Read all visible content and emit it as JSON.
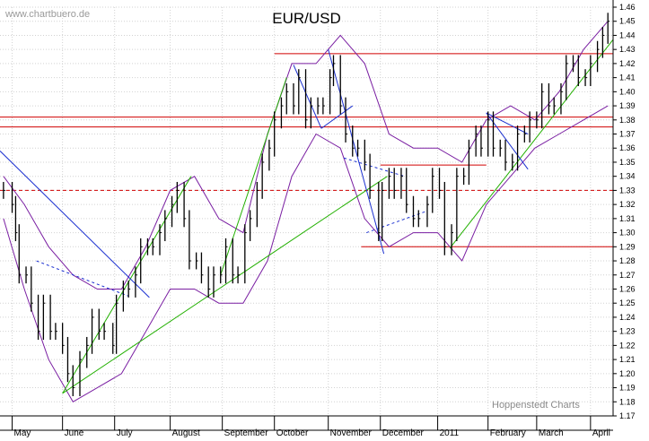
{
  "watermark": "www.chartbuero.de",
  "credit": "Hoppenstedt Charts",
  "chart_data": {
    "type": "line",
    "title": "EUR/USD",
    "xlabel": "",
    "ylabel": "",
    "x_tick_labels": [
      "May",
      "June",
      "July",
      "August",
      "September",
      "October",
      "November",
      "December",
      "2011",
      "February",
      "March",
      "April"
    ],
    "x_tick_dates": [
      "2010-05-03",
      "2010-06-01",
      "2010-07-01",
      "2010-08-02",
      "2010-09-01",
      "2010-10-01",
      "2010-11-01",
      "2010-12-01",
      "2011-01-03",
      "2011-02-01",
      "2011-03-01",
      "2011-04-01"
    ],
    "y_tick_labels": [
      "1.17",
      "1.18",
      "1.19",
      "1.20",
      "1.21",
      "1.22",
      "1.23",
      "1.24",
      "1.25",
      "1.26",
      "1.27",
      "1.28",
      "1.29",
      "1.30",
      "1.31",
      "1.32",
      "1.33",
      "1.34",
      "1.35",
      "1.36",
      "1.37",
      "1.38",
      "1.39",
      "1.40",
      "1.41",
      "1.42",
      "1.43",
      "1.44",
      "1.45",
      "1.46"
    ],
    "ylim": [
      1.17,
      1.46
    ],
    "xlim": [
      "2010-04-26",
      "2011-04-14"
    ],
    "grid": true,
    "series": [
      {
        "style": "high-low bars",
        "color": "#000000",
        "values": [
          {
            "x": "2010-04-28",
            "y": 1.33
          },
          {
            "x": "2010-05-03",
            "y": 1.32
          },
          {
            "x": "2010-05-05",
            "y": 1.3
          },
          {
            "x": "2010-05-07",
            "y": 1.27
          },
          {
            "x": "2010-05-11",
            "y": 1.27
          },
          {
            "x": "2010-05-14",
            "y": 1.25
          },
          {
            "x": "2010-05-18",
            "y": 1.23
          },
          {
            "x": "2010-05-21",
            "y": 1.25
          },
          {
            "x": "2010-05-25",
            "y": 1.23
          },
          {
            "x": "2010-05-28",
            "y": 1.23
          },
          {
            "x": "2010-06-01",
            "y": 1.22
          },
          {
            "x": "2010-06-04",
            "y": 1.2
          },
          {
            "x": "2010-06-07",
            "y": 1.19
          },
          {
            "x": "2010-06-11",
            "y": 1.21
          },
          {
            "x": "2010-06-15",
            "y": 1.22
          },
          {
            "x": "2010-06-18",
            "y": 1.24
          },
          {
            "x": "2010-06-22",
            "y": 1.23
          },
          {
            "x": "2010-06-25",
            "y": 1.23
          },
          {
            "x": "2010-06-30",
            "y": 1.22
          },
          {
            "x": "2010-07-02",
            "y": 1.25
          },
          {
            "x": "2010-07-06",
            "y": 1.26
          },
          {
            "x": "2010-07-09",
            "y": 1.26
          },
          {
            "x": "2010-07-13",
            "y": 1.27
          },
          {
            "x": "2010-07-16",
            "y": 1.29
          },
          {
            "x": "2010-07-20",
            "y": 1.29
          },
          {
            "x": "2010-07-23",
            "y": 1.29
          },
          {
            "x": "2010-07-27",
            "y": 1.3
          },
          {
            "x": "2010-07-30",
            "y": 1.31
          },
          {
            "x": "2010-08-03",
            "y": 1.32
          },
          {
            "x": "2010-08-06",
            "y": 1.33
          },
          {
            "x": "2010-08-10",
            "y": 1.31
          },
          {
            "x": "2010-08-13",
            "y": 1.28
          },
          {
            "x": "2010-08-17",
            "y": 1.28
          },
          {
            "x": "2010-08-20",
            "y": 1.27
          },
          {
            "x": "2010-08-24",
            "y": 1.26
          },
          {
            "x": "2010-08-27",
            "y": 1.27
          },
          {
            "x": "2010-08-31",
            "y": 1.27
          },
          {
            "x": "2010-09-03",
            "y": 1.29
          },
          {
            "x": "2010-09-07",
            "y": 1.27
          },
          {
            "x": "2010-09-10",
            "y": 1.27
          },
          {
            "x": "2010-09-14",
            "y": 1.3
          },
          {
            "x": "2010-09-17",
            "y": 1.31
          },
          {
            "x": "2010-09-21",
            "y": 1.33
          },
          {
            "x": "2010-09-24",
            "y": 1.35
          },
          {
            "x": "2010-09-28",
            "y": 1.36
          },
          {
            "x": "2010-10-01",
            "y": 1.38
          },
          {
            "x": "2010-10-05",
            "y": 1.39
          },
          {
            "x": "2010-10-08",
            "y": 1.4
          },
          {
            "x": "2010-10-12",
            "y": 1.39
          },
          {
            "x": "2010-10-15",
            "y": 1.41
          },
          {
            "x": "2010-10-19",
            "y": 1.38
          },
          {
            "x": "2010-10-22",
            "y": 1.39
          },
          {
            "x": "2010-10-26",
            "y": 1.39
          },
          {
            "x": "2010-10-29",
            "y": 1.39
          },
          {
            "x": "2010-11-02",
            "y": 1.41
          },
          {
            "x": "2010-11-04",
            "y": 1.42
          },
          {
            "x": "2010-11-08",
            "y": 1.39
          },
          {
            "x": "2010-11-11",
            "y": 1.37
          },
          {
            "x": "2010-11-15",
            "y": 1.36
          },
          {
            "x": "2010-11-18",
            "y": 1.36
          },
          {
            "x": "2010-11-22",
            "y": 1.35
          },
          {
            "x": "2010-11-25",
            "y": 1.33
          },
          {
            "x": "2010-11-30",
            "y": 1.3
          },
          {
            "x": "2010-12-02",
            "y": 1.33
          },
          {
            "x": "2010-12-06",
            "y": 1.34
          },
          {
            "x": "2010-12-09",
            "y": 1.33
          },
          {
            "x": "2010-12-13",
            "y": 1.34
          },
          {
            "x": "2010-12-16",
            "y": 1.32
          },
          {
            "x": "2010-12-20",
            "y": 1.31
          },
          {
            "x": "2010-12-23",
            "y": 1.31
          },
          {
            "x": "2010-12-28",
            "y": 1.32
          },
          {
            "x": "2010-12-31",
            "y": 1.34
          },
          {
            "x": "2011-01-04",
            "y": 1.33
          },
          {
            "x": "2011-01-07",
            "y": 1.29
          },
          {
            "x": "2011-01-11",
            "y": 1.3
          },
          {
            "x": "2011-01-14",
            "y": 1.34
          },
          {
            "x": "2011-01-18",
            "y": 1.34
          },
          {
            "x": "2011-01-21",
            "y": 1.36
          },
          {
            "x": "2011-01-25",
            "y": 1.37
          },
          {
            "x": "2011-01-28",
            "y": 1.36
          },
          {
            "x": "2011-02-01",
            "y": 1.38
          },
          {
            "x": "2011-02-04",
            "y": 1.36
          },
          {
            "x": "2011-02-08",
            "y": 1.36
          },
          {
            "x": "2011-02-11",
            "y": 1.35
          },
          {
            "x": "2011-02-15",
            "y": 1.35
          },
          {
            "x": "2011-02-18",
            "y": 1.37
          },
          {
            "x": "2011-02-22",
            "y": 1.37
          },
          {
            "x": "2011-02-25",
            "y": 1.38
          },
          {
            "x": "2011-03-01",
            "y": 1.38
          },
          {
            "x": "2011-03-04",
            "y": 1.4
          },
          {
            "x": "2011-03-08",
            "y": 1.39
          },
          {
            "x": "2011-03-11",
            "y": 1.39
          },
          {
            "x": "2011-03-15",
            "y": 1.4
          },
          {
            "x": "2011-03-18",
            "y": 1.42
          },
          {
            "x": "2011-03-22",
            "y": 1.42
          },
          {
            "x": "2011-03-25",
            "y": 1.41
          },
          {
            "x": "2011-03-29",
            "y": 1.41
          },
          {
            "x": "2011-04-01",
            "y": 1.42
          },
          {
            "x": "2011-04-05",
            "y": 1.43
          },
          {
            "x": "2011-04-08",
            "y": 1.44
          },
          {
            "x": "2011-04-11",
            "y": 1.45
          }
        ]
      },
      {
        "style": "upper band",
        "color": "#7a1fa2",
        "values": [
          {
            "x": "2010-04-28",
            "y": 1.34
          },
          {
            "x": "2010-05-10",
            "y": 1.32
          },
          {
            "x": "2010-05-24",
            "y": 1.29
          },
          {
            "x": "2010-06-07",
            "y": 1.27
          },
          {
            "x": "2010-06-21",
            "y": 1.26
          },
          {
            "x": "2010-07-05",
            "y": 1.26
          },
          {
            "x": "2010-07-19",
            "y": 1.29
          },
          {
            "x": "2010-08-02",
            "y": 1.33
          },
          {
            "x": "2010-08-16",
            "y": 1.34
          },
          {
            "x": "2010-08-30",
            "y": 1.31
          },
          {
            "x": "2010-09-13",
            "y": 1.3
          },
          {
            "x": "2010-09-27",
            "y": 1.37
          },
          {
            "x": "2010-10-11",
            "y": 1.42
          },
          {
            "x": "2010-10-25",
            "y": 1.42
          },
          {
            "x": "2010-11-08",
            "y": 1.44
          },
          {
            "x": "2010-11-22",
            "y": 1.42
          },
          {
            "x": "2010-12-06",
            "y": 1.37
          },
          {
            "x": "2010-12-20",
            "y": 1.36
          },
          {
            "x": "2011-01-03",
            "y": 1.36
          },
          {
            "x": "2011-01-17",
            "y": 1.35
          },
          {
            "x": "2011-01-31",
            "y": 1.38
          },
          {
            "x": "2011-02-14",
            "y": 1.39
          },
          {
            "x": "2011-02-28",
            "y": 1.38
          },
          {
            "x": "2011-03-14",
            "y": 1.4
          },
          {
            "x": "2011-03-28",
            "y": 1.43
          },
          {
            "x": "2011-04-11",
            "y": 1.45
          }
        ]
      },
      {
        "style": "lower band",
        "color": "#7a1fa2",
        "values": [
          {
            "x": "2010-04-28",
            "y": 1.31
          },
          {
            "x": "2010-05-10",
            "y": 1.26
          },
          {
            "x": "2010-05-24",
            "y": 1.21
          },
          {
            "x": "2010-06-07",
            "y": 1.18
          },
          {
            "x": "2010-06-21",
            "y": 1.19
          },
          {
            "x": "2010-07-05",
            "y": 1.2
          },
          {
            "x": "2010-07-19",
            "y": 1.23
          },
          {
            "x": "2010-08-02",
            "y": 1.26
          },
          {
            "x": "2010-08-16",
            "y": 1.26
          },
          {
            "x": "2010-08-30",
            "y": 1.25
          },
          {
            "x": "2010-09-13",
            "y": 1.25
          },
          {
            "x": "2010-09-27",
            "y": 1.28
          },
          {
            "x": "2010-10-11",
            "y": 1.34
          },
          {
            "x": "2010-10-25",
            "y": 1.37
          },
          {
            "x": "2010-11-08",
            "y": 1.36
          },
          {
            "x": "2010-11-22",
            "y": 1.31
          },
          {
            "x": "2010-12-06",
            "y": 1.29
          },
          {
            "x": "2010-12-20",
            "y": 1.3
          },
          {
            "x": "2011-01-03",
            "y": 1.3
          },
          {
            "x": "2011-01-17",
            "y": 1.28
          },
          {
            "x": "2011-01-31",
            "y": 1.32
          },
          {
            "x": "2011-02-14",
            "y": 1.34
          },
          {
            "x": "2011-02-28",
            "y": 1.36
          },
          {
            "x": "2011-03-14",
            "y": 1.37
          },
          {
            "x": "2011-03-28",
            "y": 1.38
          },
          {
            "x": "2011-04-11",
            "y": 1.39
          }
        ]
      }
    ],
    "horizontal_lines": [
      {
        "y": 1.427,
        "x_start": "2010-10-01",
        "x_end": "2011-04-14",
        "color": "#d00000",
        "dashed": false
      },
      {
        "y": 1.382,
        "x_start": "2010-04-26",
        "x_end": "2011-04-14",
        "color": "#d00000",
        "dashed": false
      },
      {
        "y": 1.375,
        "x_start": "2010-04-26",
        "x_end": "2011-04-14",
        "color": "#d00000",
        "dashed": false
      },
      {
        "y": 1.348,
        "x_start": "2010-12-01",
        "x_end": "2011-01-31",
        "color": "#d00000",
        "dashed": false
      },
      {
        "y": 1.33,
        "x_start": "2010-04-26",
        "x_end": "2011-04-14",
        "color": "#d00000",
        "dashed": true
      },
      {
        "y": 1.29,
        "x_start": "2010-11-20",
        "x_end": "2011-04-14",
        "color": "#d00000",
        "dashed": false
      }
    ],
    "trend_lines": [
      {
        "x1": "2010-06-01",
        "y1": 1.186,
        "x2": "2010-08-14",
        "y2": 1.34,
        "color": "#22b000",
        "dashed": false
      },
      {
        "x1": "2010-06-01",
        "y1": 1.186,
        "x2": "2010-12-05",
        "y2": 1.34,
        "color": "#22b000",
        "dashed": false
      },
      {
        "x1": "2010-08-31",
        "y1": 1.27,
        "x2": "2010-10-08",
        "y2": 1.41,
        "color": "#22b000",
        "dashed": false
      },
      {
        "x1": "2011-01-10",
        "y1": 1.289,
        "x2": "2011-04-14",
        "y2": 1.437,
        "color": "#22b000",
        "dashed": false
      },
      {
        "x1": "2010-04-26",
        "y1": 1.358,
        "x2": "2010-07-21",
        "y2": 1.254,
        "color": "#1a2fd0",
        "dashed": false
      },
      {
        "x1": "2010-11-01",
        "y1": 1.43,
        "x2": "2010-12-03",
        "y2": 1.285,
        "color": "#1a2fd0",
        "dashed": false
      },
      {
        "x1": "2010-10-12",
        "y1": 1.419,
        "x2": "2010-10-28",
        "y2": 1.374,
        "color": "#1a2fd0",
        "dashed": false
      },
      {
        "x1": "2010-10-28",
        "y1": 1.374,
        "x2": "2010-11-15",
        "y2": 1.39,
        "color": "#1a2fd0",
        "dashed": false
      },
      {
        "x1": "2011-01-31",
        "y1": 1.385,
        "x2": "2011-02-24",
        "y2": 1.345,
        "color": "#1a2fd0",
        "dashed": false
      },
      {
        "x1": "2011-01-31",
        "y1": 1.385,
        "x2": "2011-02-24",
        "y2": 1.37,
        "color": "#1a2fd0",
        "dashed": false
      },
      {
        "x1": "2010-05-17",
        "y1": 1.28,
        "x2": "2010-07-09",
        "y2": 1.255,
        "color": "#1a2fd0",
        "dashed": true
      },
      {
        "x1": "2010-11-10",
        "y1": 1.353,
        "x2": "2010-12-15",
        "y2": 1.34,
        "color": "#1a2fd0",
        "dashed": true
      },
      {
        "x1": "2010-11-23",
        "y1": 1.3,
        "x2": "2010-12-27",
        "y2": 1.315,
        "color": "#1a2fd0",
        "dashed": true
      }
    ]
  }
}
